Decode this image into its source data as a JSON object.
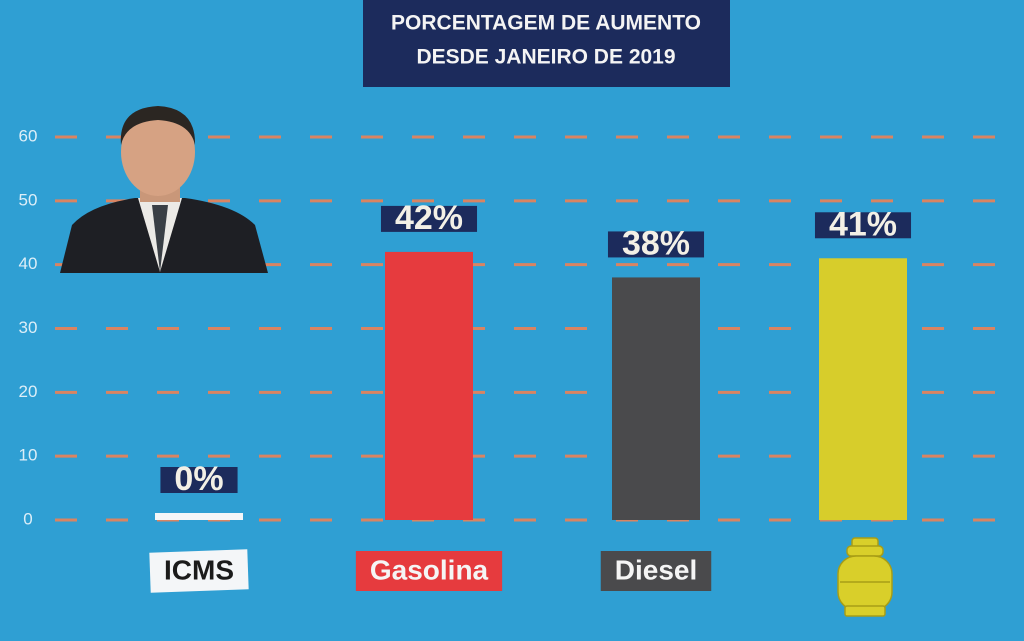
{
  "chart_data": {
    "type": "bar",
    "title": [
      "PORCENTAGEM DE AUMENTO",
      "DESDE JANEIRO DE 2019"
    ],
    "categories": [
      "ICMS",
      "Gasolina",
      "Diesel",
      null
    ],
    "values": [
      0,
      42,
      38,
      41
    ],
    "value_labels": [
      "0%",
      "42%",
      "38%",
      "41%"
    ],
    "colors": [
      "#f4f6f8",
      "#e63b3e",
      "#4a4a4c",
      "#d7cd2b"
    ],
    "ylim": [
      0,
      60
    ],
    "yticks": [
      0,
      10,
      20,
      30,
      40,
      50,
      60
    ],
    "grid": true
  }
}
